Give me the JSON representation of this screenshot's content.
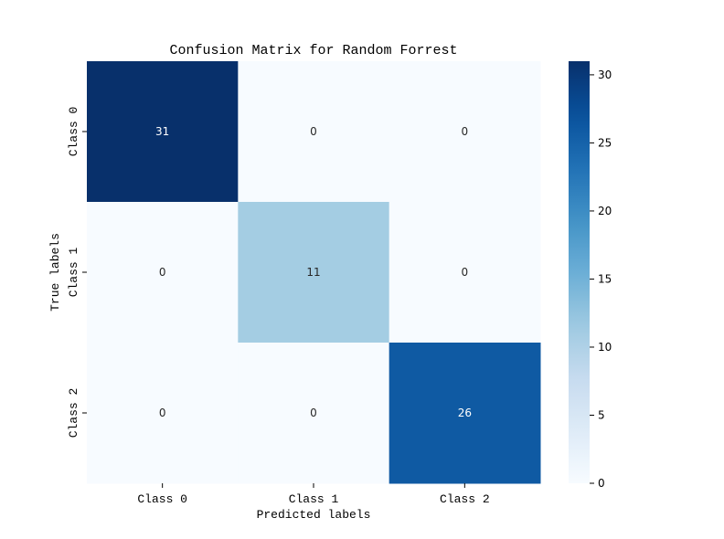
{
  "chart_data": {
    "type": "heatmap",
    "title": "Confusion Matrix for Random Forrest",
    "xlabel": "Predicted labels",
    "ylabel": "True labels",
    "x_categories": [
      "Class 0",
      "Class 1",
      "Class 2"
    ],
    "y_categories": [
      "Class 0",
      "Class 1",
      "Class 2"
    ],
    "values": [
      [
        31,
        0,
        0
      ],
      [
        0,
        11,
        0
      ],
      [
        0,
        0,
        26
      ]
    ],
    "colorscale": "Blues",
    "vmin": 0,
    "vmax": 31,
    "colorbar_ticks": [
      0,
      5,
      10,
      15,
      20,
      25,
      30
    ],
    "grid": false
  }
}
